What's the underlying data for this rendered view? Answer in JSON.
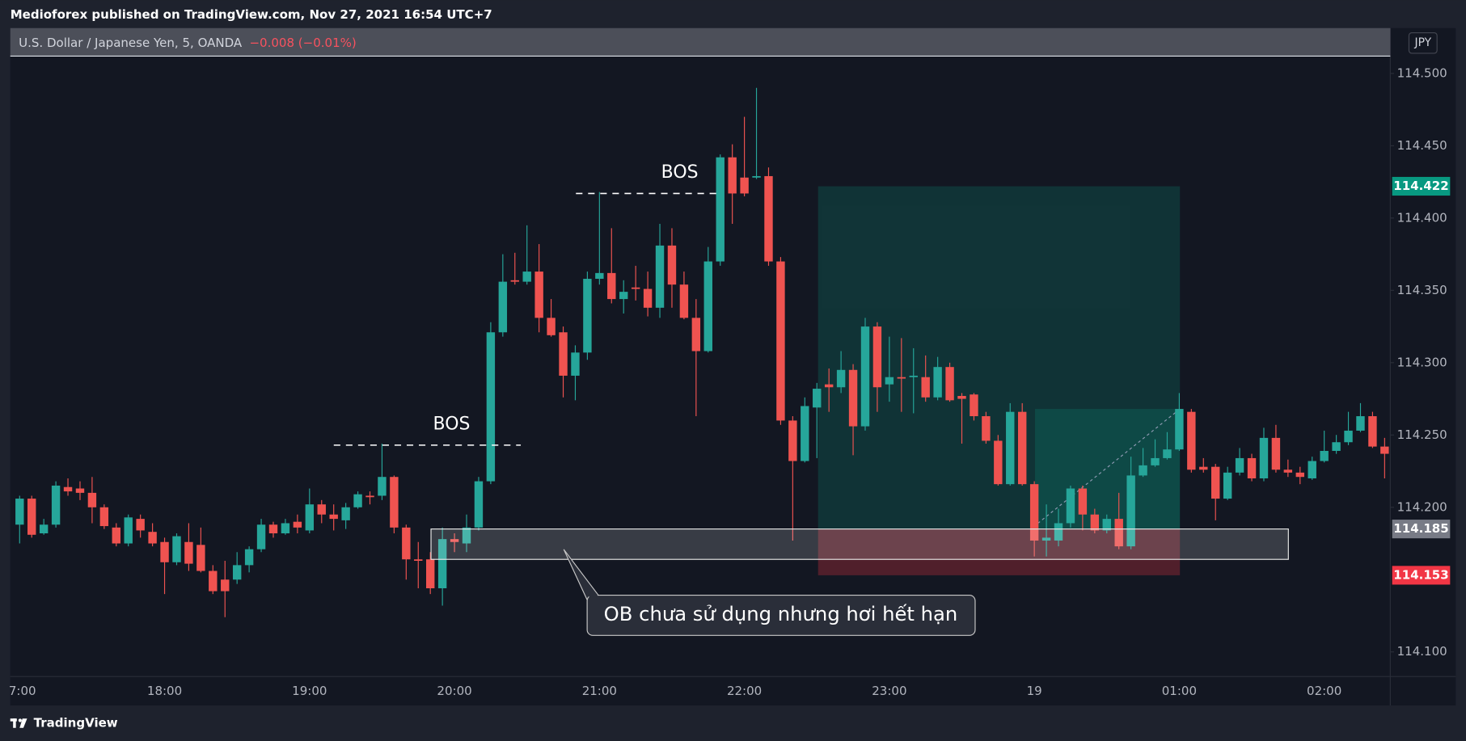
{
  "header": {
    "published": "Medioforex published on TradingView.com, Nov 27, 2021 16:54 UTC+7",
    "symbol": "U.S. Dollar / Japanese Yen, 5, OANDA",
    "change": "−0.008 (−0.01%)",
    "currency": "JPY",
    "logo": "TradingView"
  },
  "chart_data": {
    "type": "candlestick",
    "categories": [
      "7:00",
      null,
      null,
      null,
      null,
      null,
      null,
      null,
      null,
      null,
      null,
      null,
      "18:00",
      null,
      null,
      null,
      null,
      null,
      null,
      null,
      null,
      null,
      null,
      null,
      "19:00",
      null,
      null,
      null,
      null,
      null,
      null,
      null,
      null,
      null,
      null,
      null,
      "20:00",
      null,
      null,
      null,
      null,
      null,
      null,
      null,
      null,
      null,
      null,
      null,
      "21:00",
      null,
      null,
      null,
      null,
      null,
      null,
      null,
      null,
      null,
      null,
      null,
      "22:00",
      null,
      null,
      null,
      null,
      null,
      null,
      null,
      null,
      null,
      null,
      null,
      "23:00",
      null,
      null,
      null,
      null,
      null,
      null,
      null,
      null,
      null,
      null,
      null,
      "19",
      null,
      null,
      null,
      null,
      null,
      null,
      null,
      null,
      null,
      null,
      null,
      "01:00",
      null,
      null,
      null,
      null,
      null,
      null,
      null,
      null,
      null,
      null,
      null,
      "02:00",
      null,
      null,
      null,
      null,
      null
    ],
    "open": [
      114.188,
      114.206,
      114.182,
      114.188,
      114.214,
      114.213,
      114.21,
      114.2,
      114.186,
      114.175,
      114.192,
      114.183,
      114.176,
      114.162,
      114.176,
      114.174,
      114.156,
      114.15,
      114.15,
      114.16,
      114.171,
      114.188,
      114.182,
      114.19,
      114.184,
      114.202,
      114.195,
      114.191,
      114.2,
      114.208,
      114.208,
      114.221,
      114.186,
      114.164,
      114.164,
      114.144,
      114.178,
      114.175,
      114.186,
      114.218,
      114.321,
      114.357,
      114.356,
      114.363,
      114.331,
      114.321,
      114.291,
      114.307,
      114.358,
      114.362,
      114.344,
      114.352,
      114.351,
      114.338,
      114.381,
      114.354,
      114.331,
      114.308,
      114.37,
      114.442,
      114.428,
      114.428,
      114.429,
      114.37,
      114.26,
      114.232,
      114.269,
      114.285,
      114.283,
      114.295,
      114.256,
      114.325,
      114.285,
      114.29,
      114.29,
      114.29,
      114.276,
      114.297,
      114.277,
      114.278,
      114.263,
      114.246,
      114.216,
      114.266,
      114.216,
      114.177,
      114.177,
      114.189,
      114.213,
      114.195,
      114.184,
      114.192,
      114.173,
      114.222,
      114.229,
      114.234,
      114.24,
      114.266,
      114.228,
      114.228,
      114.206,
      114.224,
      114.234,
      114.22,
      114.248,
      114.226,
      114.224,
      114.22,
      114.232,
      114.239,
      114.245,
      114.253,
      114.263,
      114.242
    ],
    "high": [
      114.208,
      114.208,
      114.192,
      114.218,
      114.22,
      114.218,
      114.221,
      114.202,
      114.189,
      114.195,
      114.195,
      114.189,
      114.179,
      114.182,
      114.189,
      114.186,
      114.16,
      114.163,
      114.169,
      114.173,
      114.192,
      114.19,
      114.192,
      114.195,
      114.213,
      114.205,
      114.202,
      114.203,
      114.211,
      114.211,
      114.244,
      114.222,
      114.188,
      114.176,
      114.169,
      114.186,
      114.182,
      114.195,
      114.221,
      114.328,
      114.375,
      114.376,
      114.395,
      114.382,
      114.344,
      114.325,
      114.312,
      114.363,
      114.418,
      114.393,
      114.357,
      114.367,
      114.363,
      114.396,
      114.393,
      114.363,
      114.344,
      114.38,
      114.444,
      114.451,
      114.47,
      114.49,
      114.435,
      114.373,
      114.263,
      114.276,
      114.286,
      114.296,
      114.308,
      114.299,
      114.331,
      114.328,
      114.318,
      114.317,
      114.31,
      114.305,
      114.304,
      114.3,
      114.279,
      114.279,
      114.266,
      114.25,
      114.272,
      114.272,
      114.218,
      114.202,
      114.199,
      114.215,
      114.215,
      114.199,
      114.195,
      114.21,
      114.235,
      114.241,
      114.247,
      114.252,
      114.279,
      114.268,
      114.234,
      114.23,
      114.228,
      114.241,
      114.237,
      114.255,
      114.257,
      114.233,
      114.228,
      114.235,
      114.253,
      114.25,
      114.266,
      114.272,
      114.266,
      114.248
    ],
    "low": [
      114.175,
      114.179,
      114.181,
      114.186,
      114.208,
      114.205,
      114.189,
      114.185,
      114.173,
      114.173,
      114.179,
      114.173,
      114.14,
      114.16,
      114.156,
      114.155,
      114.14,
      114.124,
      114.147,
      114.155,
      114.169,
      114.179,
      114.181,
      114.182,
      114.182,
      114.189,
      114.184,
      114.185,
      114.199,
      114.202,
      114.205,
      114.182,
      114.15,
      114.144,
      114.14,
      114.132,
      114.169,
      114.169,
      114.184,
      114.216,
      114.318,
      114.354,
      114.354,
      114.321,
      114.318,
      114.276,
      114.274,
      114.302,
      114.354,
      114.341,
      114.334,
      114.343,
      114.332,
      114.331,
      114.338,
      114.33,
      114.263,
      114.307,
      114.367,
      114.396,
      114.415,
      114.427,
      114.367,
      114.257,
      114.177,
      114.231,
      114.234,
      114.266,
      114.279,
      114.236,
      114.253,
      114.266,
      114.273,
      114.266,
      114.265,
      114.273,
      114.274,
      114.273,
      114.244,
      114.26,
      114.244,
      114.215,
      114.215,
      114.215,
      114.166,
      114.166,
      114.173,
      114.186,
      114.184,
      114.182,
      114.182,
      114.171,
      114.171,
      114.221,
      114.228,
      114.233,
      114.239,
      114.224,
      114.224,
      114.191,
      114.205,
      114.222,
      114.218,
      114.218,
      114.224,
      114.221,
      114.216,
      114.219,
      114.231,
      114.237,
      114.243,
      114.252,
      114.241,
      114.22
    ],
    "close": [
      114.206,
      114.181,
      114.188,
      114.215,
      114.211,
      114.21,
      114.2,
      114.187,
      114.175,
      114.193,
      114.184,
      114.175,
      114.162,
      114.18,
      114.161,
      114.156,
      114.142,
      114.142,
      114.16,
      114.171,
      114.188,
      114.182,
      114.189,
      114.186,
      114.202,
      114.195,
      114.192,
      114.2,
      114.209,
      114.207,
      114.221,
      114.186,
      114.164,
      114.163,
      114.144,
      114.178,
      114.176,
      114.186,
      114.218,
      114.321,
      114.356,
      114.356,
      114.363,
      114.331,
      114.319,
      114.291,
      114.307,
      114.358,
      114.362,
      114.344,
      114.349,
      114.351,
      114.338,
      114.381,
      114.354,
      114.331,
      114.308,
      114.37,
      114.442,
      114.417,
      114.417,
      114.429,
      114.37,
      114.26,
      114.232,
      114.27,
      114.282,
      114.283,
      114.295,
      114.256,
      114.325,
      114.283,
      114.29,
      114.289,
      114.291,
      114.276,
      114.297,
      114.274,
      114.275,
      114.263,
      114.246,
      114.216,
      114.266,
      114.216,
      114.177,
      114.179,
      114.189,
      114.213,
      114.195,
      114.184,
      114.192,
      114.173,
      114.222,
      114.229,
      114.234,
      114.24,
      114.268,
      114.226,
      114.226,
      114.206,
      114.224,
      114.234,
      114.22,
      114.248,
      114.226,
      114.224,
      114.221,
      114.232,
      114.239,
      114.245,
      114.253,
      114.263,
      114.242,
      114.237
    ],
    "up_color": "#26a69a",
    "down_color": "#ef5350",
    "ylim": [
      114.083,
      114.512
    ],
    "yticks": [
      {
        "value": 114.1,
        "label": "114.100"
      },
      {
        "value": 114.2,
        "label": "114.200"
      },
      {
        "value": 114.25,
        "label": "114.250"
      },
      {
        "value": 114.3,
        "label": "114.300"
      },
      {
        "value": 114.35,
        "label": "114.350"
      },
      {
        "value": 114.4,
        "label": "114.400"
      },
      {
        "value": 114.45,
        "label": "114.450"
      },
      {
        "value": 114.5,
        "label": "114.500"
      }
    ],
    "grid": false,
    "price_badges": [
      {
        "value": 114.422,
        "label": "114.422",
        "color": "#089981"
      },
      {
        "value": 114.185,
        "label": "114.185",
        "color": "#787b86"
      },
      {
        "value": 114.153,
        "label": "114.153",
        "color": "#f23645"
      }
    ],
    "annotations": [
      {
        "text": "BOS",
        "price": 114.243
      },
      {
        "text": "BOS",
        "price": 114.417
      }
    ],
    "ob_zone": {
      "top": 114.185,
      "bottom": 114.164
    },
    "callout": "OB chưa sử dụng nhưng hơi hết hạn"
  }
}
